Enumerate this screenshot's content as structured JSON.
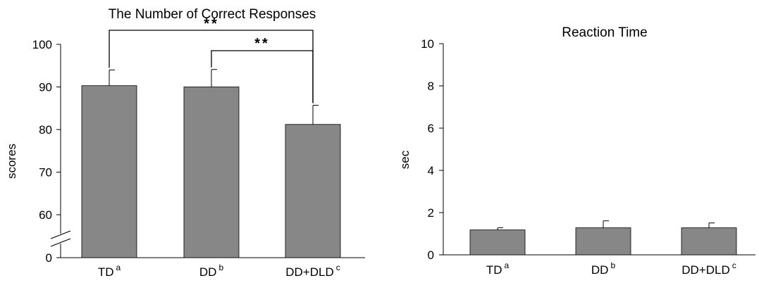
{
  "colors": {
    "bar": "#878787",
    "axis": "#000000"
  },
  "chart_data": [
    {
      "type": "bar",
      "title": "The Number of Correct Responses",
      "xlabel": "",
      "ylabel": "scores",
      "ylim": [
        0,
        100
      ],
      "axis_break": "between 0 and 60",
      "yticks": [
        "0",
        "60",
        "70",
        "80",
        "90",
        "100"
      ],
      "categories": [
        {
          "base": "TD",
          "sup": "a"
        },
        {
          "base": "DD",
          "sup": "b"
        },
        {
          "base": "DD+DLD",
          "sup": "c"
        }
      ],
      "values": [
        90.3,
        90.0,
        81.2
      ],
      "errors": [
        3.7,
        4.1,
        4.5
      ],
      "significance": [
        {
          "from": 0,
          "to": 2,
          "label": "**"
        },
        {
          "from": 1,
          "to": 2,
          "label": "**"
        }
      ]
    },
    {
      "type": "bar",
      "title": "Reaction Time",
      "xlabel": "",
      "ylabel": "sec",
      "ylim": [
        0,
        10
      ],
      "yticks": [
        "0",
        "2",
        "4",
        "6",
        "8",
        "10"
      ],
      "categories": [
        {
          "base": "TD",
          "sup": "a"
        },
        {
          "base": "DD",
          "sup": "b"
        },
        {
          "base": "DD+DLD",
          "sup": "c"
        }
      ],
      "values": [
        1.18,
        1.28,
        1.28
      ],
      "errors": [
        0.1,
        0.33,
        0.23
      ]
    }
  ]
}
